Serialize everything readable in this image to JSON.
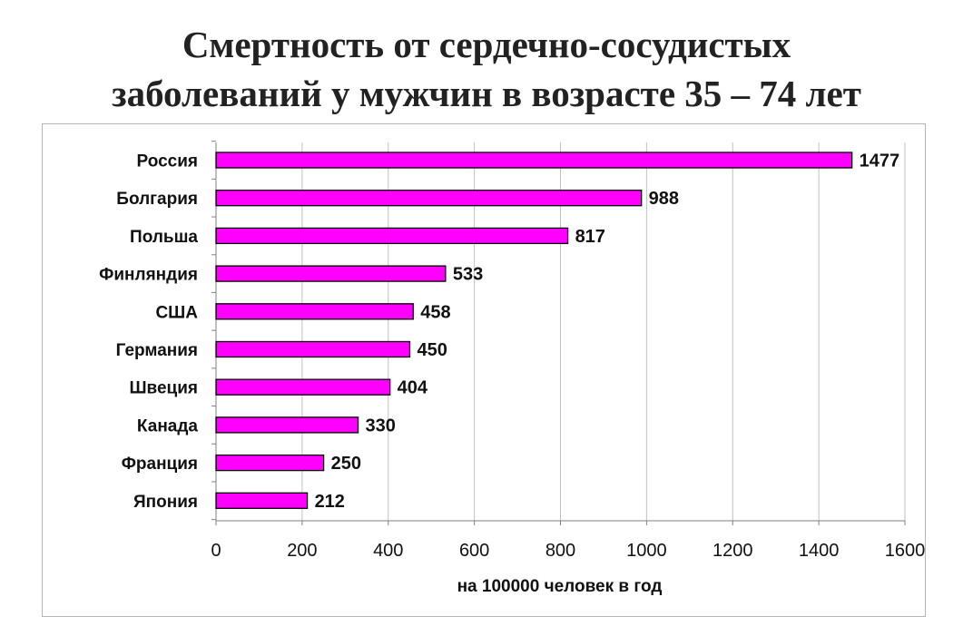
{
  "title_line1": "Смертность от сердечно-сосудистых",
  "title_line2": "заболеваний у мужчин в возрасте 35 – 74 лет",
  "chart_data": {
    "type": "bar",
    "orientation": "horizontal",
    "categories": [
      "Россия",
      "Болгария",
      "Польша",
      "Финляндия",
      "США",
      "Германия",
      "Швеция",
      "Канада",
      "Франция",
      "Япония"
    ],
    "values": [
      1477,
      988,
      817,
      533,
      458,
      450,
      404,
      330,
      250,
      212
    ],
    "value_labels": [
      "1477",
      "988",
      "817",
      "533",
      "458",
      "450",
      "404",
      "330",
      "250",
      "212"
    ],
    "xlabel": "на 100000 человек в год",
    "ylabel": "",
    "xlim": [
      0,
      1600
    ],
    "xticks": [
      0,
      200,
      400,
      600,
      800,
      1000,
      1200,
      1400,
      1600
    ],
    "xtick_labels": [
      "0",
      "200",
      "400",
      "600",
      "800",
      "1000",
      "1200",
      "1400",
      "1600"
    ],
    "grid": true,
    "bar_color": "#ff00ff",
    "bar_edge_color": "#000000",
    "gridline_color": "#c0c0c0"
  }
}
